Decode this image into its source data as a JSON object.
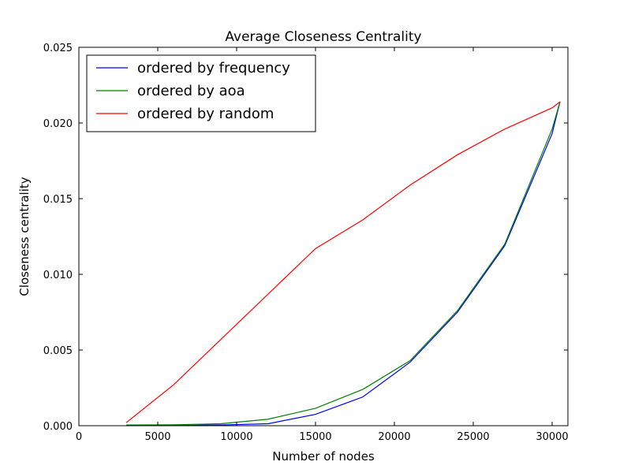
{
  "chart_data": {
    "type": "line",
    "title": "Average Closeness Centrality",
    "xlabel": "Number of nodes",
    "ylabel": "Closeness centrality",
    "xlim": [
      0,
      31000
    ],
    "ylim": [
      0,
      0.025
    ],
    "xticks": [
      0,
      5000,
      10000,
      15000,
      20000,
      25000,
      30000
    ],
    "xtick_labels": [
      "0",
      "5000",
      "10000",
      "15000",
      "20000",
      "25000",
      "30000"
    ],
    "yticks": [
      0,
      0.005,
      0.01,
      0.015,
      0.02,
      0.025
    ],
    "ytick_labels": [
      "0.000",
      "0.005",
      "0.010",
      "0.015",
      "0.020",
      "0.025"
    ],
    "grid": false,
    "legend_position": "top-left",
    "x": [
      3000,
      6000,
      9000,
      12000,
      15000,
      18000,
      21000,
      24000,
      27000,
      30000,
      30500
    ],
    "series": [
      {
        "name": "ordered by frequency",
        "color": "#0000ff",
        "values": [
          2e-05,
          3e-05,
          5e-05,
          0.00013,
          0.00075,
          0.0019,
          0.0042,
          0.0075,
          0.0119,
          0.0193,
          0.0214
        ]
      },
      {
        "name": "ordered by aoa",
        "color": "#008000",
        "values": [
          5e-05,
          6e-05,
          0.00013,
          0.00043,
          0.00115,
          0.0024,
          0.0043,
          0.0076,
          0.012,
          0.0196,
          0.0214
        ]
      },
      {
        "name": "ordered by random",
        "color": "#ff0000",
        "values": [
          0.0002,
          0.0027,
          0.0057,
          0.0087,
          0.0117,
          0.0136,
          0.0159,
          0.0179,
          0.0196,
          0.021,
          0.0214
        ]
      }
    ]
  }
}
